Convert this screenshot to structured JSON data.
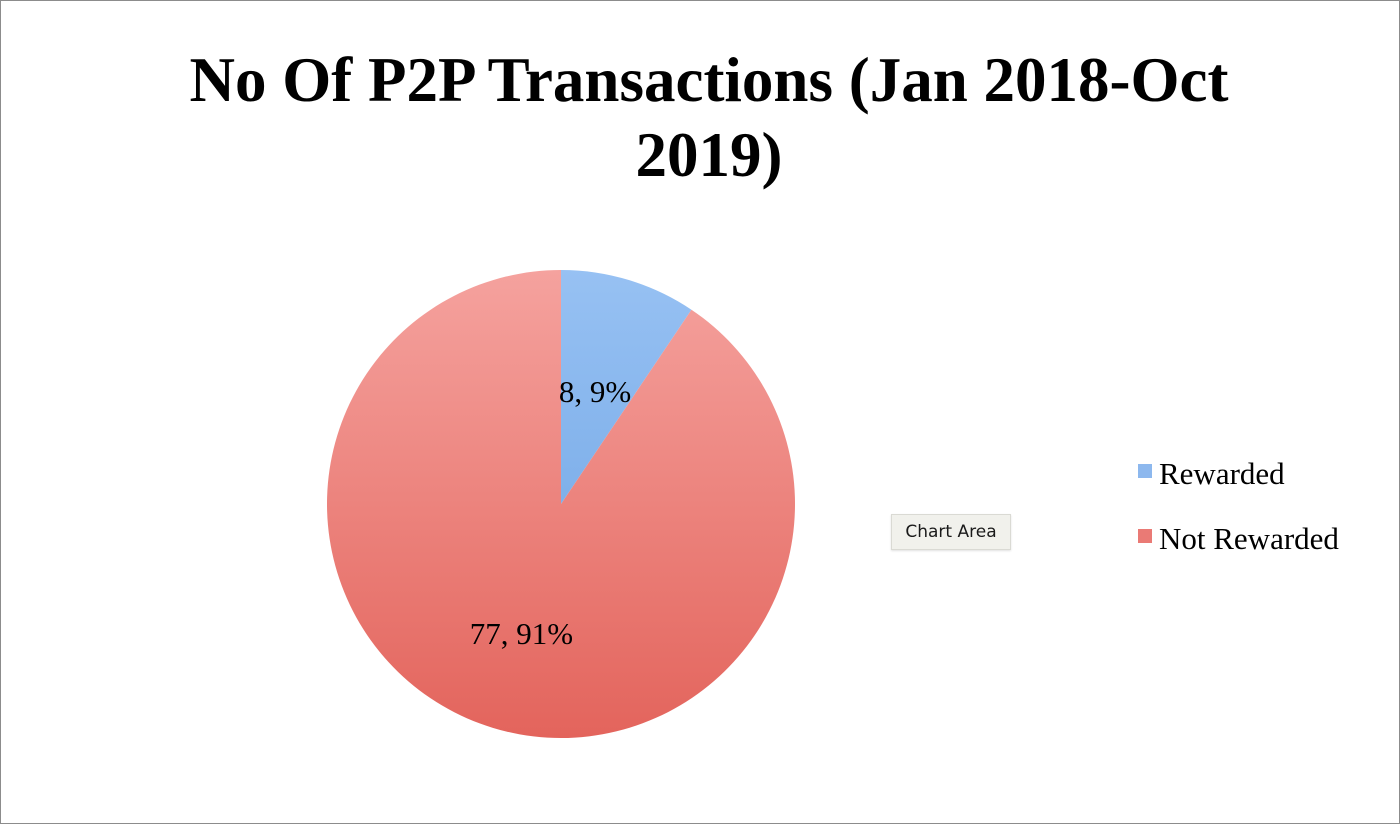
{
  "chart_data": {
    "type": "pie",
    "title": "No Of P2P Transactions (Jan 2018-Oct 2019)",
    "categories": [
      "Rewarded",
      "Not Rewarded"
    ],
    "values": [
      8,
      77
    ],
    "percentages": [
      9,
      91
    ],
    "data_labels": [
      "8, 9%",
      "77, 91%"
    ],
    "colors": [
      "#8db8ee",
      "#ea7a75"
    ],
    "start_angle_deg": 0,
    "direction": "clockwise",
    "legend": {
      "position": "right",
      "entries": [
        "Rewarded",
        "Not Rewarded"
      ]
    }
  },
  "tooltip": {
    "text": "Chart Area"
  }
}
